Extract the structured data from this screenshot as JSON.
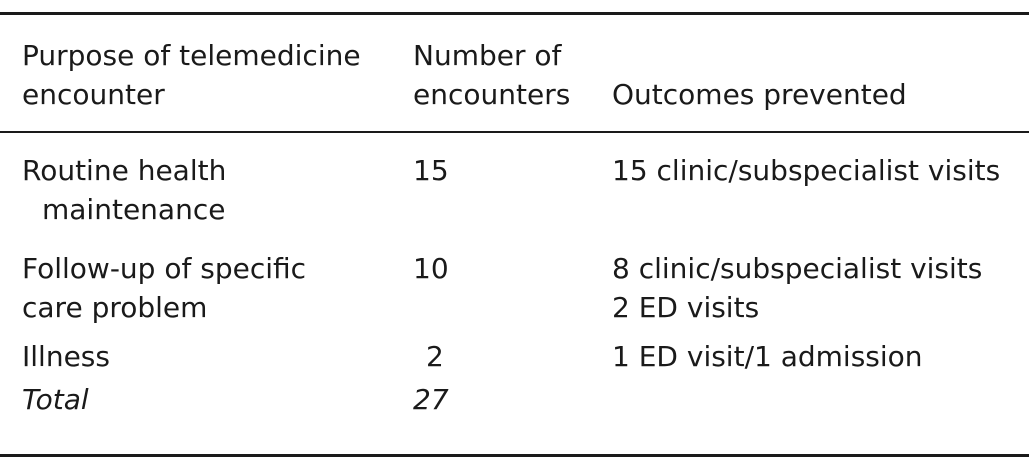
{
  "table": {
    "headers": {
      "purpose_line1": "Purpose of telemedicine",
      "purpose_line2": "encounter",
      "number_line1": "Number of",
      "number_line2": "encounters",
      "outcomes": "Outcomes prevented"
    },
    "rows": [
      {
        "purpose_line1": "Routine health",
        "purpose_line2": "maintenance",
        "number": "15",
        "outcome_line1": "15 clinic/subspecialist visits",
        "outcome_line2": ""
      },
      {
        "purpose_line1": "Follow-up of specific",
        "purpose_line2": "care problem",
        "number": "10",
        "outcome_line1": "8 clinic/subspecialist visits",
        "outcome_line2": "2 ED visits"
      },
      {
        "purpose_line1": "Illness",
        "purpose_line2": "",
        "number": "2",
        "outcome_line1": "1 ED visit/1 admission",
        "outcome_line2": ""
      }
    ],
    "total": {
      "label": "Total",
      "number": "27"
    }
  }
}
